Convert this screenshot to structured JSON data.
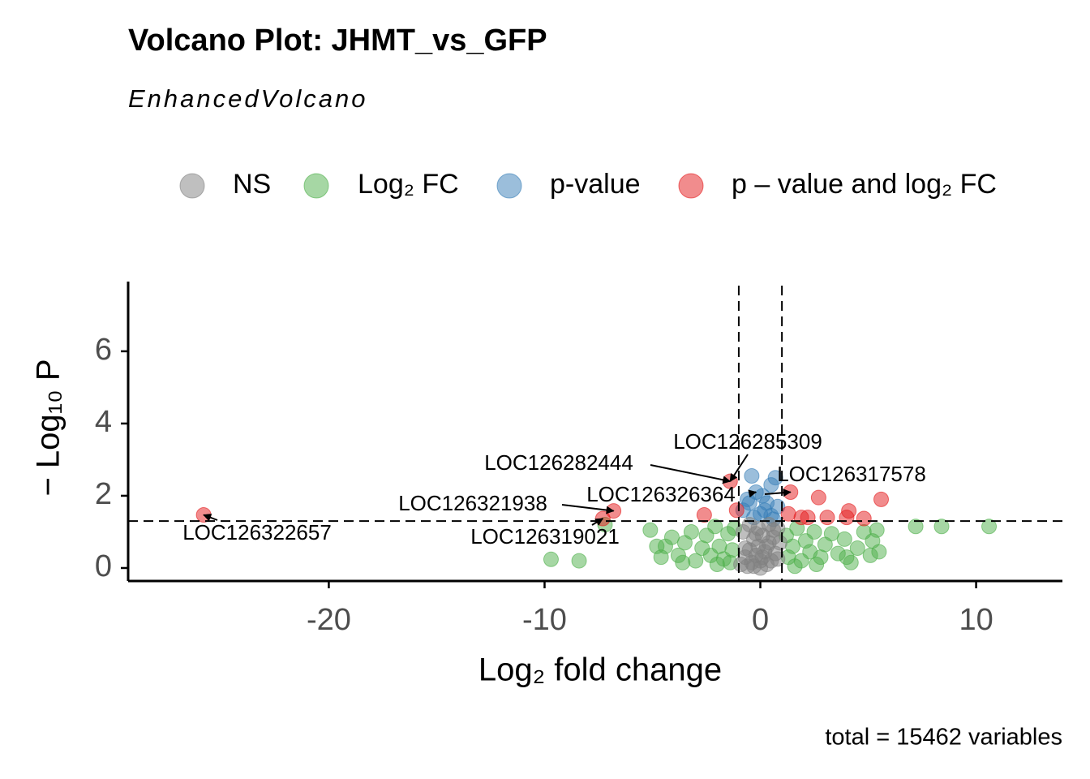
{
  "chart_data": {
    "type": "scatter",
    "title": "Volcano Plot: JHMT_vs_GFP",
    "subtitle": "EnhancedVolcano",
    "xlabel": "Log₂ fold change",
    "ylabel": "− Log₁₀ P",
    "caption": "total = 15462 variables",
    "xlim": [
      -29.3,
      14.0
    ],
    "ylim": [
      -0.36,
      7.93
    ],
    "xticks": [
      -20,
      -10,
      0,
      10
    ],
    "yticks": [
      0,
      2,
      4,
      6
    ],
    "fc_cutoff": [
      -1,
      1
    ],
    "p_cutoff": 1.3,
    "series": [
      {
        "name": "NS",
        "color": "#808080",
        "x": [
          -0.9,
          -0.7,
          -0.5,
          -0.3,
          -0.1,
          0.1,
          0.3,
          0.5,
          0.7,
          0.9,
          -0.8,
          -0.6,
          -0.4,
          -0.2,
          0,
          0.2,
          0.4,
          0.6,
          0.8,
          -0.5,
          -0.1,
          0.3,
          0.6,
          -0.3,
          0.1,
          0.4,
          -0.7,
          0.8,
          0,
          -0.2
        ],
        "values": [
          0.1,
          0.3,
          0.5,
          0.8,
          1.1,
          0.9,
          0.6,
          0.2,
          0.4,
          0.7,
          1.0,
          0.05,
          0.15,
          0.35,
          0.0,
          0.45,
          1.2,
          0.85,
          0.25,
          1.2,
          0.6,
          0.1,
          1.05,
          0.05,
          0.3,
          0.7,
          0.55,
          1.1,
          0.2,
          0.95
        ]
      },
      {
        "name": "Log₂ FC",
        "color": "#4daf4a",
        "x": [
          -5.1,
          -4.6,
          -4.4,
          -4.1,
          -3.8,
          -3.5,
          -3.2,
          -3.0,
          -2.7,
          -2.5,
          -2.3,
          -2.1,
          -1.9,
          -1.7,
          -1.5,
          -1.3,
          -1.2,
          -9.7,
          -8.4,
          -7.2,
          1.2,
          1.3,
          1.5,
          1.7,
          1.9,
          2.1,
          2.3,
          2.5,
          2.8,
          3.0,
          3.3,
          3.6,
          3.9,
          4.2,
          4.5,
          4.8,
          5.1,
          5.4,
          5.5,
          5.2,
          7.2,
          8.4,
          10.6,
          -3.6,
          -2.0,
          1.6,
          2.6,
          4.0,
          -4.8,
          -1.4
        ],
        "values": [
          1.05,
          0.3,
          0.6,
          0.85,
          0.35,
          0.7,
          1.0,
          0.2,
          0.55,
          0.9,
          0.35,
          1.15,
          0.6,
          0.25,
          0.95,
          0.5,
          1.1,
          0.24,
          0.2,
          1.2,
          0.9,
          0.3,
          0.6,
          1.1,
          0.2,
          0.75,
          0.45,
          1.0,
          0.3,
          0.65,
          0.95,
          0.4,
          0.8,
          0.15,
          0.55,
          1.0,
          0.35,
          1.05,
          0.45,
          0.75,
          1.15,
          1.15,
          1.15,
          0.15,
          0.1,
          0.05,
          0.1,
          0.3,
          0.6,
          0.15
        ]
      },
      {
        "name": "p-value",
        "color": "#377eb8",
        "x": [
          -0.4,
          0.7,
          0.5,
          -0.2,
          0.1,
          -0.6,
          0.3,
          0.8,
          -0.8,
          0.0,
          0.5,
          -0.3,
          0.6,
          -0.5,
          0.2
        ],
        "values": [
          2.55,
          2.5,
          2.3,
          2.1,
          2.0,
          1.9,
          1.8,
          1.7,
          1.6,
          1.5,
          1.45,
          1.4,
          1.35,
          1.8,
          1.6
        ]
      },
      {
        "name": "p – value and log₂ FC",
        "color": "#e41a1c",
        "x": [
          -25.8,
          -6.8,
          -7.3,
          -2.6,
          -1.4,
          1.4,
          2.7,
          5.6,
          4.1,
          4.8,
          1.9,
          2.2,
          3.1,
          4.0,
          -1.1,
          1.3
        ],
        "values": [
          1.47,
          1.58,
          1.37,
          1.47,
          2.4,
          2.1,
          1.95,
          1.9,
          1.58,
          1.37,
          1.4,
          1.4,
          1.4,
          1.4,
          1.6,
          1.5
        ]
      }
    ],
    "annotations": [
      {
        "text": "LOC126322657",
        "x": -25.8,
        "y": 1.47
      },
      {
        "text": "LOC126282444",
        "x": -1.4,
        "y": 2.4
      },
      {
        "text": "LOC126285309",
        "x": -1.4,
        "y": 2.4
      },
      {
        "text": "LOC126317578",
        "x": 1.4,
        "y": 2.1
      },
      {
        "text": "LOC126326364",
        "x": -0.2,
        "y": 2.1
      },
      {
        "text": "LOC126321938",
        "x": -6.8,
        "y": 1.58
      },
      {
        "text": "LOC126319021",
        "x": -7.3,
        "y": 1.37
      }
    ]
  }
}
